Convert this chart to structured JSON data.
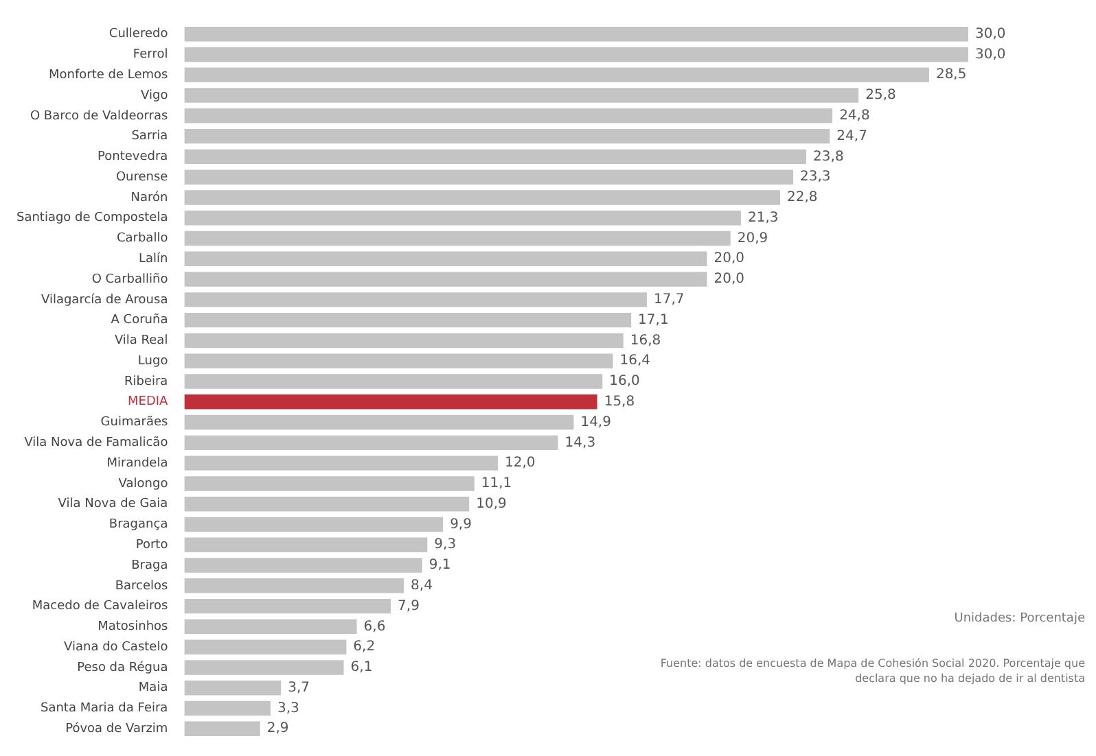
{
  "chart_data": {
    "type": "bar",
    "orientation": "horizontal",
    "categories": [
      "Culleredo",
      "Ferrol",
      "Monforte de Lemos",
      "Vigo",
      "O Barco de Valdeorras",
      "Sarria",
      "Pontevedra",
      "Ourense",
      "Narón",
      "Santiago de Compostela",
      "Carballo",
      "Lalín",
      "O Carballiño",
      "Vilagarcía de Arousa",
      "A Coruña",
      "Vila Real",
      "Lugo",
      "Ribeira",
      "MEDIA",
      "Guimarães",
      "Vila Nova de Famalicão",
      "Mirandela",
      "Valongo",
      "Vila Nova de Gaia",
      "Bragança",
      "Porto",
      "Braga",
      "Barcelos",
      "Macedo de Cavaleiros",
      "Matosinhos",
      "Viana do Castelo",
      "Peso da Régua",
      "Maia",
      "Santa Maria da Feira",
      "Póvoa de Varzim"
    ],
    "values": [
      30.0,
      30.0,
      28.5,
      25.8,
      24.8,
      24.7,
      23.8,
      23.3,
      22.8,
      21.3,
      20.9,
      20.0,
      20.0,
      17.7,
      17.1,
      16.8,
      16.4,
      16.0,
      15.8,
      14.9,
      14.3,
      12.0,
      11.1,
      10.9,
      9.9,
      9.3,
      9.1,
      8.4,
      7.9,
      6.6,
      6.2,
      6.1,
      3.7,
      3.3,
      2.9
    ],
    "value_labels": [
      "30,0",
      "30,0",
      "28,5",
      "25,8",
      "24,8",
      "24,7",
      "23,8",
      "23,3",
      "22,8",
      "21,3",
      "20,9",
      "20,0",
      "20,0",
      "17,7",
      "17,1",
      "16,8",
      "16,4",
      "16,0",
      "15,8",
      "14,9",
      "14,3",
      "12,0",
      "11,1",
      "10,9",
      "9,9",
      "9,3",
      "9,1",
      "8,4",
      "7,9",
      "6,6",
      "6,2",
      "6,1",
      "3,7",
      "3,3",
      "2,9"
    ],
    "colors": [
      "#c4c4c4",
      "#c4c4c4",
      "#c4c4c4",
      "#c4c4c4",
      "#c4c4c4",
      "#c4c4c4",
      "#c4c4c4",
      "#c4c4c4",
      "#c4c4c4",
      "#c4c4c4",
      "#c4c4c4",
      "#c4c4c4",
      "#c4c4c4",
      "#c4c4c4",
      "#c4c4c4",
      "#c4c4c4",
      "#c4c4c4",
      "#c4c4c4",
      "#c0303a",
      "#c4c4c4",
      "#c4c4c4",
      "#c4c4c4",
      "#c4c4c4",
      "#c4c4c4",
      "#c4c4c4",
      "#c4c4c4",
      "#c4c4c4",
      "#c4c4c4",
      "#c4c4c4",
      "#c4c4c4",
      "#c4c4c4",
      "#c4c4c4",
      "#c4c4c4",
      "#c4c4c4",
      "#c4c4c4"
    ],
    "legend": false,
    "annotations": [
      "Unidades: Porcentaje",
      "Fuente: datos de encuesta de Mapa de Cohesión Social 2020. Porcentaje que declara que no ha dejado de ir al dentista"
    ]
  }
}
